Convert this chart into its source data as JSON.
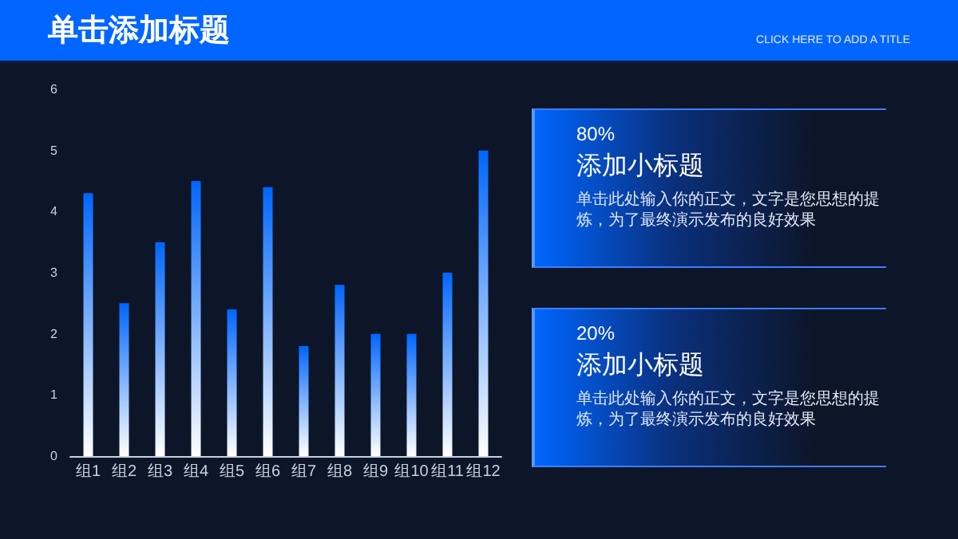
{
  "chart_data": [
    {
      "type": "other",
      "title": "单击添加标题",
      "subtitle": "CLICK HERE TO ADD A TITLE"
    },
    {
      "type": "bar",
      "categories": [
        "组1",
        "组2",
        "组3",
        "组4",
        "组5",
        "组6",
        "组7",
        "组8",
        "组9",
        "组10",
        "组11",
        "组12"
      ],
      "values": [
        4.3,
        2.5,
        3.5,
        4.5,
        2.4,
        4.4,
        1.8,
        2.8,
        2.0,
        2.0,
        3.0,
        5.0
      ],
      "color": "#0066ff",
      "ylim": [
        0,
        6
      ],
      "yticks": [
        0,
        1,
        2,
        3,
        4,
        5,
        6
      ],
      "grid": false
    },
    {
      "type": "other",
      "subtitle": "80%",
      "title": "添加小标题",
      "annotations": [
        "单击此处输入你的正文，文字是您思想的提炼，为了最终演示发布的良好效果"
      ]
    },
    {
      "type": "other",
      "subtitle": "20%",
      "title": "添加小标题",
      "annotations": [
        "单击此处输入你的正文，文字是您思想的提炼，为了最终演示发布的良好效果"
      ]
    }
  ]
}
